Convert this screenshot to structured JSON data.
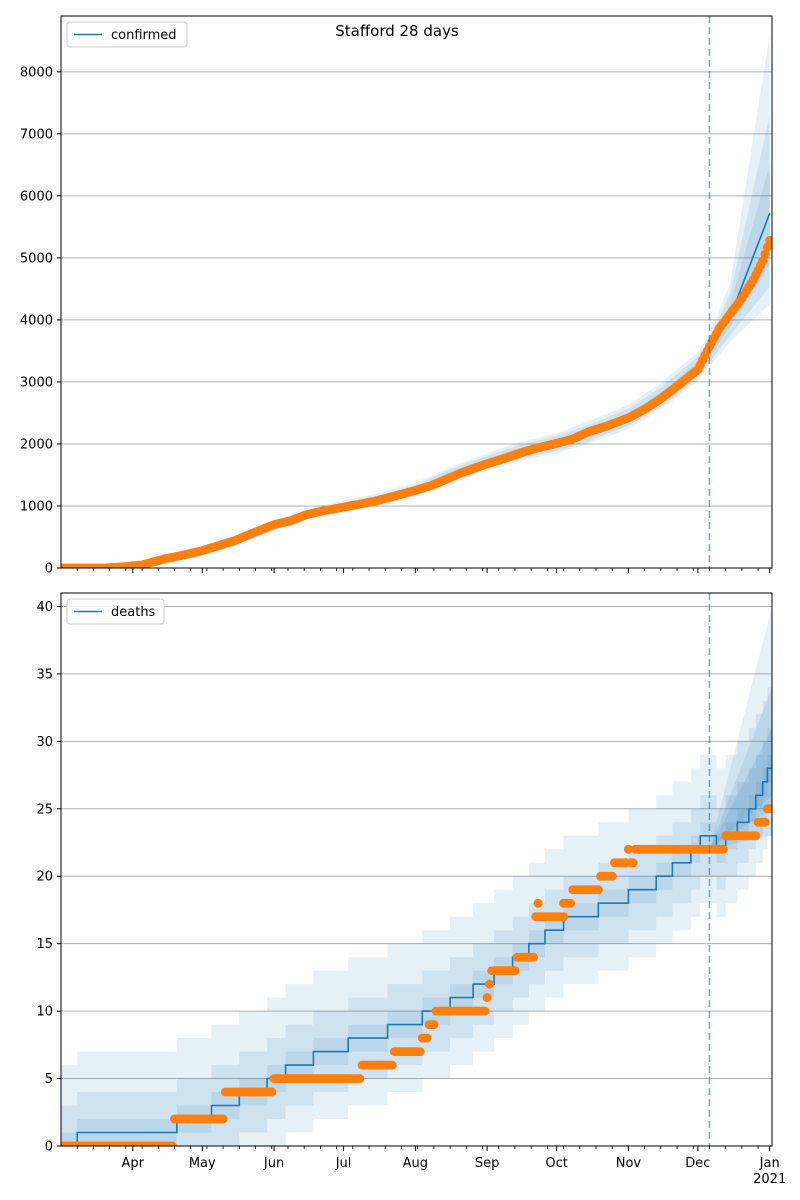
{
  "colors": {
    "model": "#1f77b4",
    "observed": "#ff7f0e",
    "band": "#1f77b4",
    "grid": "#b0b0b0",
    "vline": "#1f77b4"
  },
  "chart_data": [
    {
      "type": "line",
      "title": "Stafford 28 days",
      "legend": {
        "label": "confirmed",
        "position": "top-left"
      },
      "xlabel": "",
      "ylabel": "",
      "grid": "horizontal",
      "xlim": [
        "2020-03-01",
        "2021-01-02"
      ],
      "ylim": [
        0,
        8900
      ],
      "yticks": [
        0,
        1000,
        2000,
        3000,
        4000,
        5000,
        6000,
        7000,
        8000
      ],
      "forecast_start": "2020-12-06",
      "series": [
        {
          "name": "confirmed",
          "x": [
            "2020-03-01",
            "2020-03-15",
            "2020-03-25",
            "2020-04-05",
            "2020-04-15",
            "2020-05-01",
            "2020-05-15",
            "2020-06-01",
            "2020-06-15",
            "2020-07-01",
            "2020-07-15",
            "2020-08-01",
            "2020-08-15",
            "2020-09-01",
            "2020-09-15",
            "2020-10-01",
            "2020-10-15",
            "2020-11-01",
            "2020-11-15",
            "2020-12-01",
            "2020-12-06",
            "2020-12-15",
            "2021-01-01"
          ],
          "values": [
            0,
            0,
            10,
            60,
            160,
            290,
            460,
            690,
            870,
            990,
            1090,
            1250,
            1480,
            1700,
            1870,
            2000,
            2170,
            2420,
            2750,
            3230,
            3500,
            4050,
            5720
          ]
        }
      ],
      "observed": {
        "x": [
          "2020-03-01",
          "2020-03-10",
          "2020-03-20",
          "2020-03-28",
          "2020-04-05",
          "2020-04-10",
          "2020-04-15",
          "2020-04-22",
          "2020-05-01",
          "2020-05-08",
          "2020-05-15",
          "2020-05-22",
          "2020-06-01",
          "2020-06-08",
          "2020-06-15",
          "2020-06-22",
          "2020-07-01",
          "2020-07-08",
          "2020-07-15",
          "2020-07-22",
          "2020-08-01",
          "2020-08-08",
          "2020-08-15",
          "2020-08-22",
          "2020-09-01",
          "2020-09-08",
          "2020-09-15",
          "2020-09-22",
          "2020-10-01",
          "2020-10-08",
          "2020-10-15",
          "2020-10-22",
          "2020-11-01",
          "2020-11-08",
          "2020-11-15",
          "2020-11-22",
          "2020-12-01",
          "2020-12-05",
          "2020-12-10",
          "2020-12-15",
          "2020-12-20",
          "2020-12-25",
          "2020-12-29",
          "2021-01-01"
        ],
        "values": [
          0,
          0,
          0,
          20,
          50,
          100,
          150,
          200,
          280,
          360,
          440,
          550,
          700,
          760,
          860,
          920,
          980,
          1030,
          1080,
          1150,
          1250,
          1330,
          1440,
          1550,
          1680,
          1760,
          1850,
          1930,
          2010,
          2080,
          2200,
          2280,
          2420,
          2560,
          2730,
          2930,
          3200,
          3500,
          3850,
          4100,
          4350,
          4650,
          4950,
          5280
        ]
      },
      "bands": [
        {
          "lower": [
            0,
            0,
            0,
            40,
            130,
            250,
            410,
            630,
            800,
            915,
            1005,
            1160,
            1370,
            1570,
            1730,
            1850,
            2010,
            2240,
            2550,
            3010,
            3250,
            3650,
            4250
          ],
          "upper": [
            60,
            60,
            70,
            100,
            210,
            350,
            530,
            770,
            960,
            1085,
            1195,
            1370,
            1610,
            1850,
            2030,
            2170,
            2370,
            2630,
            2980,
            3480,
            3760,
            4600,
            8600
          ]
        },
        {
          "lower": [
            0,
            0,
            0,
            45,
            140,
            260,
            425,
            645,
            815,
            930,
            1025,
            1180,
            1395,
            1600,
            1760,
            1885,
            2050,
            2290,
            2600,
            3070,
            3310,
            3760,
            4530
          ],
          "upper": [
            45,
            45,
            55,
            85,
            190,
            330,
            505,
            745,
            935,
            1060,
            1165,
            1335,
            1575,
            1810,
            1985,
            2125,
            2310,
            2570,
            2910,
            3410,
            3690,
            4440,
            7300
          ]
        },
        {
          "lower": [
            0,
            0,
            0,
            50,
            148,
            272,
            440,
            665,
            842,
            958,
            1055,
            1212,
            1435,
            1645,
            1810,
            1935,
            2105,
            2350,
            2670,
            3140,
            3400,
            3900,
            4900
          ],
          "upper": [
            25,
            25,
            35,
            75,
            175,
            308,
            485,
            720,
            900,
            1025,
            1125,
            1295,
            1535,
            1760,
            1935,
            2065,
            2240,
            2495,
            2830,
            3320,
            3600,
            4250,
            6500
          ]
        }
      ]
    },
    {
      "type": "line",
      "title": "",
      "legend": {
        "label": "deaths",
        "position": "top-left"
      },
      "xlabel": "",
      "ylabel": "",
      "grid": "horizontal",
      "xlim": [
        "2020-03-01",
        "2021-01-02"
      ],
      "ylim": [
        0,
        41
      ],
      "yticks": [
        0,
        5,
        10,
        15,
        20,
        25,
        30,
        35,
        40
      ],
      "xticks": [
        "2020-04-01",
        "2020-05-01",
        "2020-06-01",
        "2020-07-01",
        "2020-08-01",
        "2020-09-01",
        "2020-10-01",
        "2020-11-01",
        "2020-12-01",
        "2021-01-01"
      ],
      "xtick_labels": [
        "Apr",
        "May",
        "Jun",
        "Jul",
        "Aug",
        "Sep",
        "Oct",
        "Nov",
        "Dec",
        "Jan"
      ],
      "year_label": "2021",
      "forecast_start": "2020-12-06",
      "series": [
        {
          "name": "deaths",
          "steps": [
            [
              "2020-03-01",
              0
            ],
            [
              "2020-03-08",
              1
            ],
            [
              "2020-04-20",
              2
            ],
            [
              "2020-05-05",
              3
            ],
            [
              "2020-05-17",
              4
            ],
            [
              "2020-05-29",
              5
            ],
            [
              "2020-06-06",
              6
            ],
            [
              "2020-06-18",
              7
            ],
            [
              "2020-07-03",
              8
            ],
            [
              "2020-07-20",
              9
            ],
            [
              "2020-08-04",
              10
            ],
            [
              "2020-08-16",
              11
            ],
            [
              "2020-08-26",
              12
            ],
            [
              "2020-09-04",
              13
            ],
            [
              "2020-09-12",
              14
            ],
            [
              "2020-09-19",
              15
            ],
            [
              "2020-09-26",
              16
            ],
            [
              "2020-10-04",
              17
            ],
            [
              "2020-10-19",
              18
            ],
            [
              "2020-11-01",
              19
            ],
            [
              "2020-11-13",
              20
            ],
            [
              "2020-11-20",
              21
            ],
            [
              "2020-11-28",
              22
            ],
            [
              "2020-12-02",
              23
            ],
            [
              "2020-12-09",
              22
            ],
            [
              "2020-12-13",
              23
            ],
            [
              "2020-12-18",
              24
            ],
            [
              "2020-12-23",
              25
            ],
            [
              "2020-12-26",
              26
            ],
            [
              "2020-12-29",
              27
            ],
            [
              "2020-12-31",
              28
            ],
            [
              "2021-01-02",
              28
            ]
          ]
        }
      ],
      "observed": {
        "runs": [
          [
            "2020-03-01",
            "2020-04-18",
            0
          ],
          [
            "2020-04-19",
            "2020-05-10",
            2
          ],
          [
            "2020-05-11",
            "2020-05-31",
            4
          ],
          [
            "2020-06-01",
            "2020-07-08",
            5
          ],
          [
            "2020-07-09",
            "2020-07-22",
            6
          ],
          [
            "2020-07-23",
            "2020-08-03",
            7
          ],
          [
            "2020-08-04",
            "2020-08-06",
            8
          ],
          [
            "2020-08-07",
            "2020-08-09",
            9
          ],
          [
            "2020-08-10",
            "2020-08-31",
            10
          ],
          [
            "2020-09-01",
            "2020-09-01",
            11
          ],
          [
            "2020-09-02",
            "2020-09-02",
            12
          ],
          [
            "2020-09-03",
            "2020-09-13",
            13
          ],
          [
            "2020-09-14",
            "2020-09-21",
            14
          ],
          [
            "2020-09-22",
            "2020-10-04",
            17
          ],
          [
            "2020-09-23",
            "2020-09-23",
            18
          ],
          [
            "2020-10-04",
            "2020-10-07",
            18
          ],
          [
            "2020-10-08",
            "2020-10-19",
            19
          ],
          [
            "2020-10-20",
            "2020-10-25",
            20
          ],
          [
            "2020-10-26",
            "2020-10-31",
            21
          ],
          [
            "2020-11-01",
            "2020-11-01",
            22
          ],
          [
            "2020-11-02",
            "2020-11-03",
            21
          ],
          [
            "2020-11-04",
            "2020-12-12",
            22
          ],
          [
            "2020-12-13",
            "2020-12-26",
            23
          ],
          [
            "2020-12-27",
            "2020-12-30",
            24
          ],
          [
            "2020-12-31",
            "2021-01-01",
            25
          ]
        ]
      },
      "bands_offsets": [
        {
          "down": 1,
          "up": 1
        },
        {
          "down": 3,
          "up": 3
        },
        {
          "down": 5,
          "up": 6
        }
      ],
      "forecast_fan": {
        "end_median": 28,
        "end_lower": [
          26,
          25,
          23
        ],
        "end_upper": [
          31,
          34,
          40
        ]
      }
    }
  ]
}
